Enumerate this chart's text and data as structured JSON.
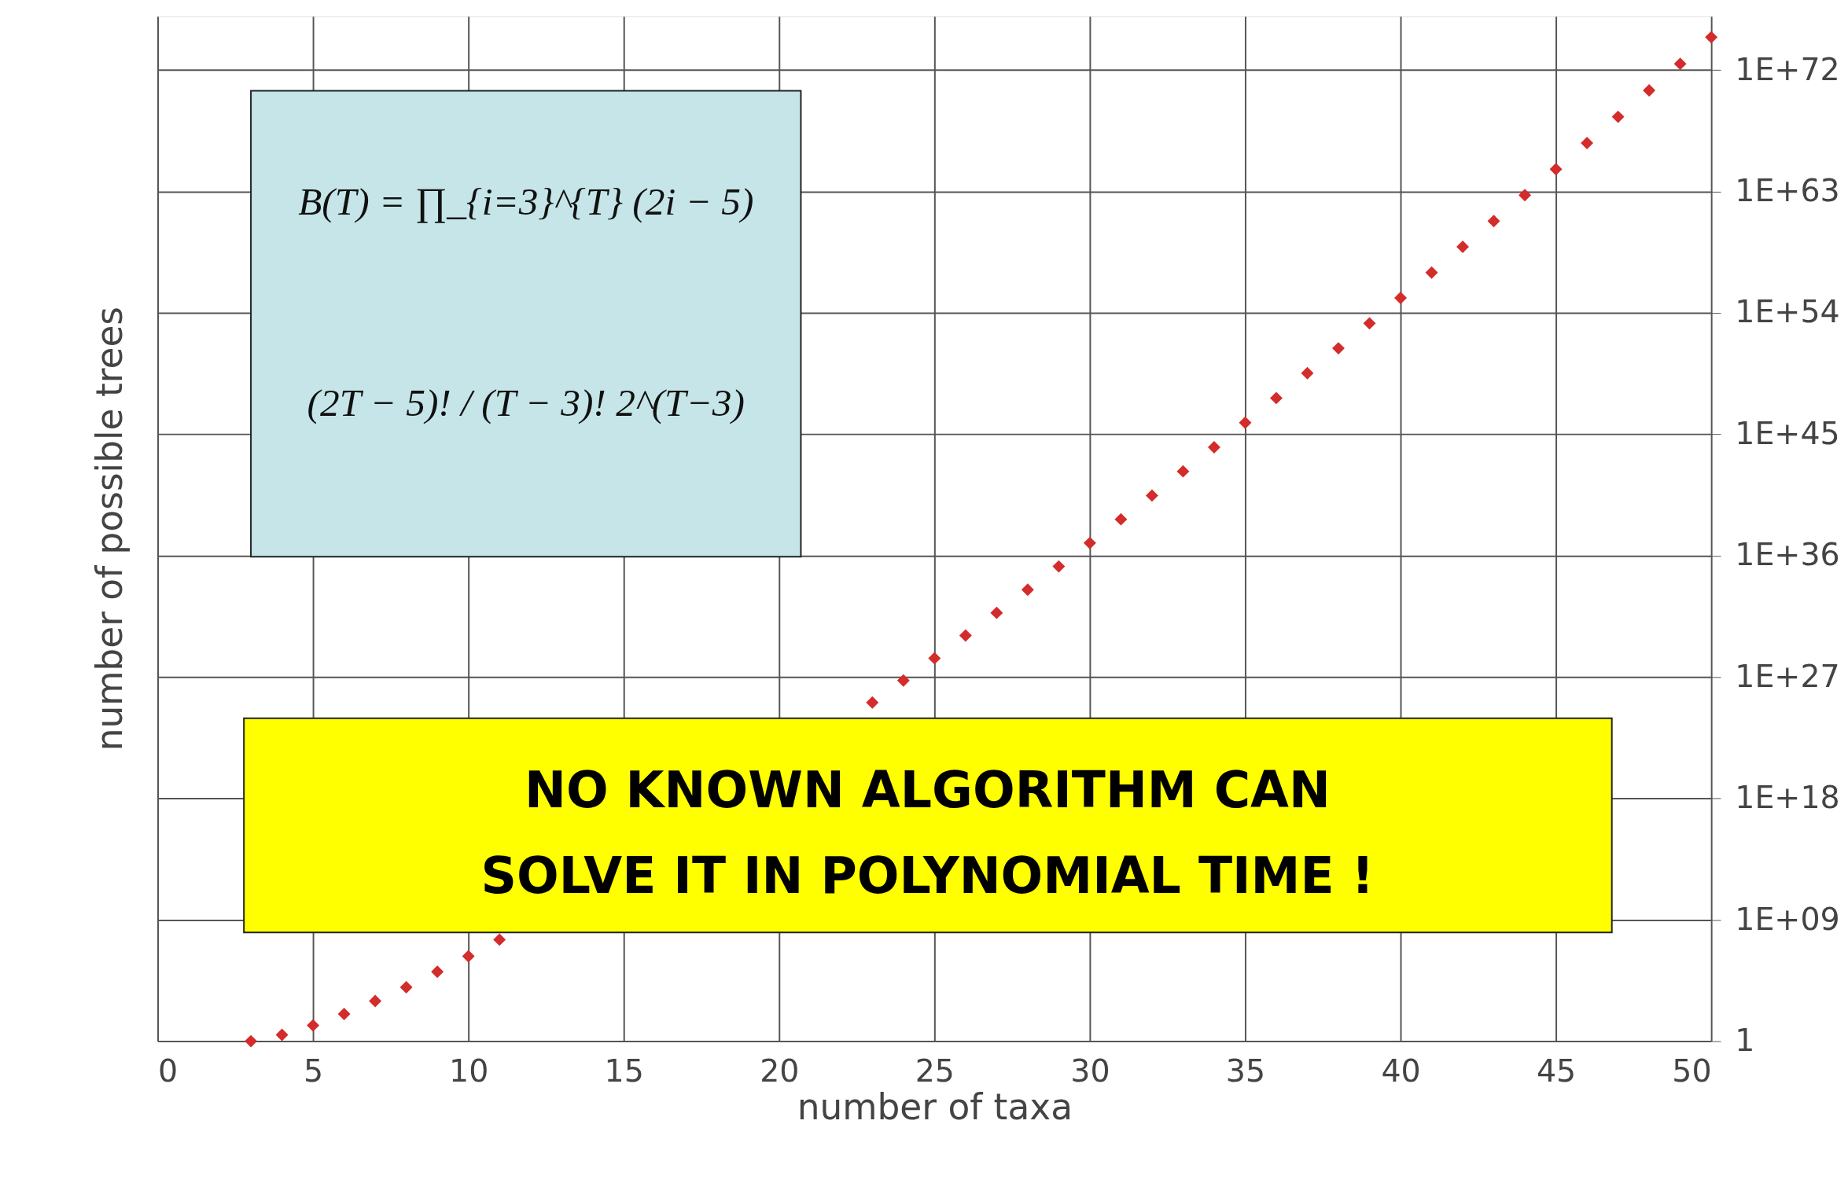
{
  "chart_data": {
    "type": "scatter",
    "xlabel": "number of taxa",
    "ylabel": "number of possible trees",
    "x": [
      3,
      4,
      5,
      6,
      7,
      8,
      9,
      10,
      11,
      12,
      13,
      14,
      15,
      16,
      17,
      18,
      19,
      20,
      21,
      22,
      23,
      24,
      25,
      26,
      27,
      28,
      29,
      30,
      31,
      32,
      33,
      34,
      35,
      36,
      37,
      38,
      39,
      40,
      41,
      42,
      43,
      44,
      45,
      46,
      47,
      48,
      49,
      50
    ],
    "series": [
      {
        "color": "#d42b2b",
        "values": [
          1,
          3,
          15,
          105,
          945,
          10000.0,
          140000.0,
          2000000.0,
          34000000.0,
          null,
          null,
          null,
          null,
          null,
          null,
          null,
          null,
          null,
          null,
          null,
          1.3e+25,
          5.6e+26,
          2.5e+28,
          1.2e+30,
          5.8e+31,
          3e+33,
          1.6e+35,
          8.7e+36,
          5e+38,
          2.9e+40,
          1.8e+42,
          1.1e+44,
          7.3e+45,
          4.9e+47,
          3.4e+49,
          2.4e+51,
          1.7e+53,
          1.3e+55,
          1e+57,
          8e+58,
          6.5e+60,
          5.4e+62,
          4.6e+64,
          4e+66,
          3.5e+68,
          3.2e+70,
          3e+72,
          2.8e+74
        ]
      }
    ],
    "marker": "diamond",
    "log": "y",
    "grid": true,
    "legend": false,
    "xlim": [
      0,
      50
    ],
    "xticks": [
      0,
      5,
      10,
      15,
      20,
      25,
      30,
      35,
      40,
      45,
      50
    ],
    "ylim": [
      1,
      1e+76
    ],
    "yticks": [
      1,
      {
        "value": 1000000000.0,
        "label": "1E+09"
      },
      {
        "value": 1e+18,
        "label": "1E+18"
      },
      {
        "value": 1e+27,
        "label": "1E+27"
      },
      {
        "value": 1e+36,
        "label": "1E+36"
      },
      {
        "value": 1e+45,
        "label": "1E+45"
      },
      {
        "value": 1e+54,
        "label": "1E+54"
      },
      {
        "value": 1e+63,
        "label": "1E+63"
      },
      {
        "value": 1e+72,
        "label": "1E+72"
      }
    ],
    "annotations": [
      "B(T) = ∏_{i=3}^{T} (2i − 5)",
      "(2T − 5)! / (T − 3)! 2^(T−3)",
      "NO KNOWN ALGORITHM CAN",
      "SOLVE IT IN POLYNOMIAL TIME !"
    ]
  }
}
